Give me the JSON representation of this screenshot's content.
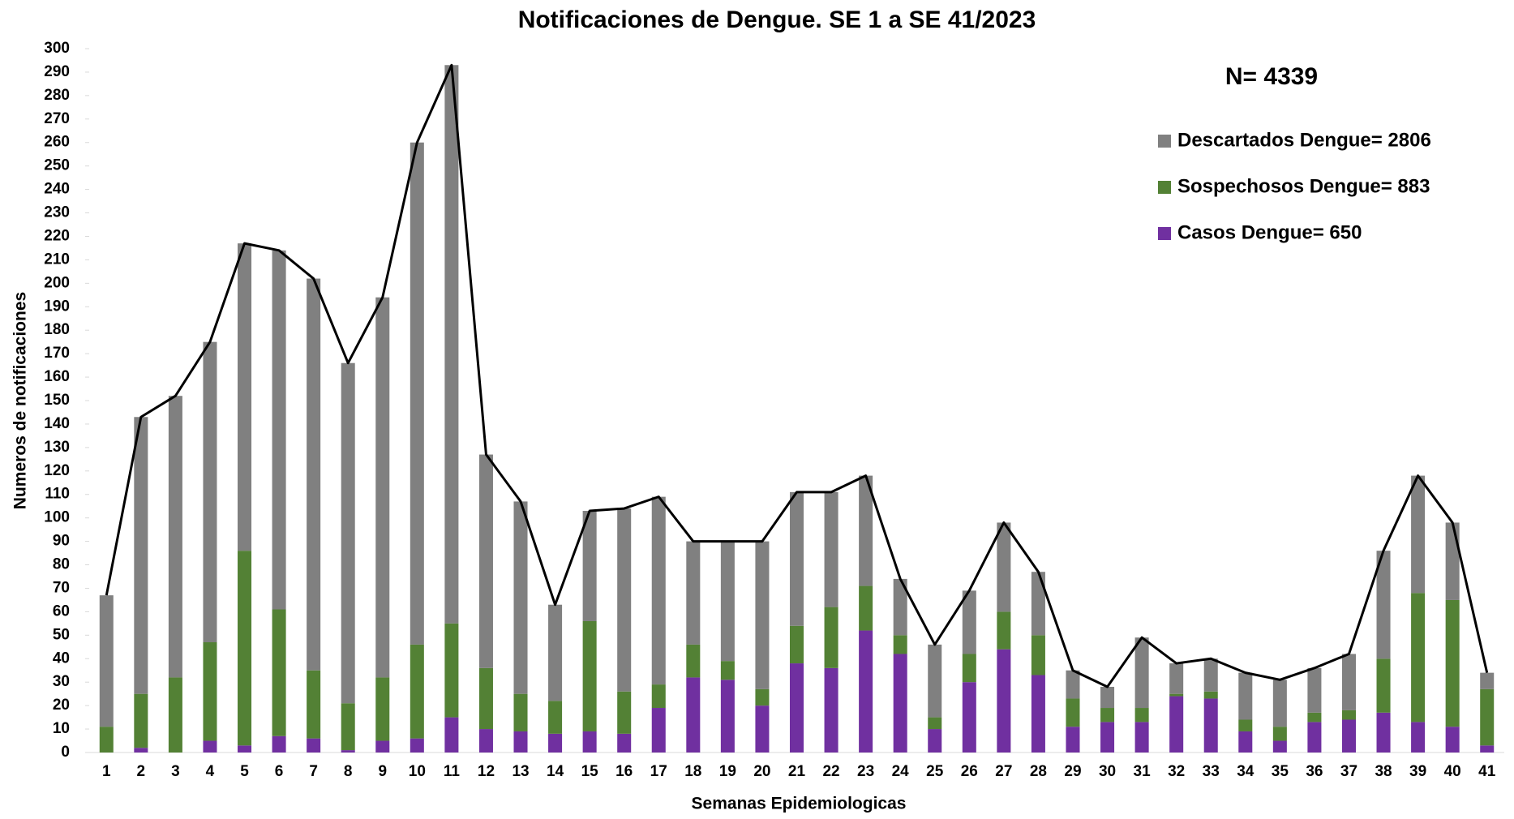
{
  "chart_data": {
    "type": "stacked_bar",
    "title": "Notificaciones de Dengue. SE 1 a SE 41/2023",
    "x_label": "Semanas Epidemiologicas",
    "y_label": "Numeros de notificaciones",
    "annotation": "N= 4339",
    "categories": [
      "1",
      "2",
      "3",
      "4",
      "5",
      "6",
      "7",
      "8",
      "9",
      "10",
      "11",
      "12",
      "13",
      "14",
      "15",
      "16",
      "17",
      "18",
      "19",
      "20",
      "21",
      "22",
      "23",
      "24",
      "25",
      "26",
      "27",
      "28",
      "29",
      "30",
      "31",
      "32",
      "33",
      "34",
      "35",
      "36",
      "37",
      "38",
      "39",
      "40",
      "41"
    ],
    "series": [
      {
        "name": "Casos Dengue= 650",
        "color": "#7030a0",
        "values": [
          0,
          2,
          0,
          5,
          3,
          7,
          6,
          1,
          5,
          6,
          15,
          10,
          9,
          8,
          9,
          8,
          19,
          32,
          31,
          20,
          38,
          36,
          52,
          42,
          10,
          30,
          44,
          33,
          11,
          13,
          13,
          24,
          23,
          9,
          5,
          13,
          14,
          17,
          13,
          11,
          3
        ]
      },
      {
        "name": "Sospechosos Dengue= 883",
        "color": "#538135",
        "values": [
          11,
          23,
          32,
          42,
          83,
          54,
          29,
          20,
          27,
          40,
          40,
          26,
          16,
          14,
          47,
          18,
          10,
          14,
          8,
          7,
          16,
          26,
          19,
          8,
          5,
          12,
          16,
          17,
          12,
          6,
          6,
          1,
          3,
          5,
          6,
          4,
          4,
          23,
          55,
          54,
          24
        ]
      },
      {
        "name": "Descartados Dengue= 2806",
        "color": "#808080",
        "values": [
          56,
          118,
          120,
          128,
          131,
          153,
          167,
          145,
          162,
          214,
          238,
          91,
          82,
          41,
          47,
          78,
          80,
          44,
          51,
          63,
          57,
          49,
          47,
          24,
          31,
          27,
          38,
          27,
          12,
          9,
          30,
          13,
          14,
          20,
          20,
          19,
          24,
          46,
          50,
          33,
          7
        ]
      }
    ],
    "totals": [
      67,
      143,
      152,
      175,
      217,
      214,
      202,
      166,
      194,
      260,
      293,
      127,
      107,
      63,
      103,
      104,
      109,
      90,
      90,
      90,
      111,
      111,
      118,
      74,
      46,
      69,
      98,
      77,
      35,
      28,
      49,
      38,
      40,
      34,
      31,
      36,
      42,
      86,
      118,
      98,
      34
    ],
    "line_color": "#000000",
    "ylim": [
      0,
      300
    ],
    "yticks": [
      0,
      10,
      20,
      30,
      40,
      50,
      60,
      70,
      80,
      90,
      100,
      110,
      120,
      130,
      140,
      150,
      160,
      170,
      180,
      190,
      200,
      210,
      220,
      230,
      240,
      250,
      260,
      270,
      280,
      290,
      300
    ],
    "grid": false
  }
}
